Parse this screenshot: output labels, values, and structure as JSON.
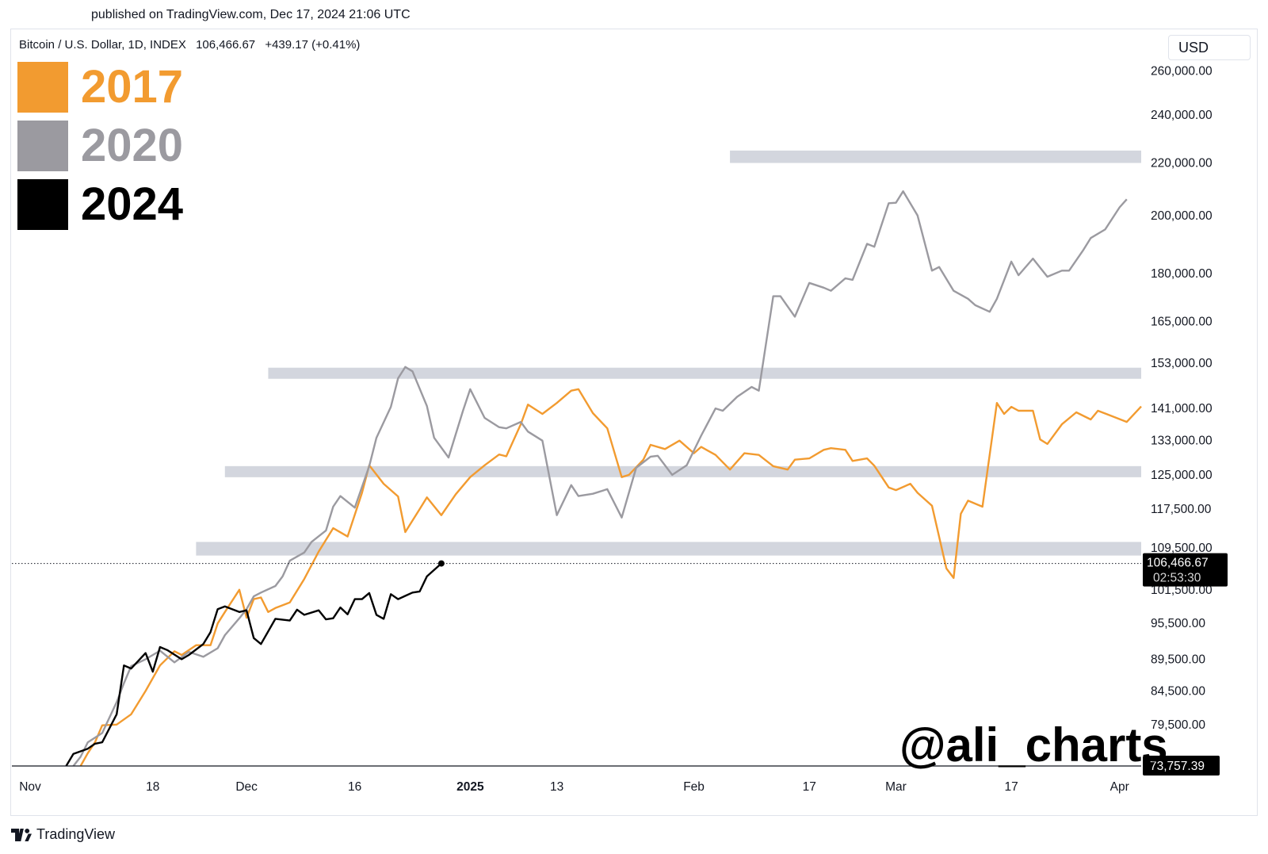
{
  "header": {
    "published": "published on TradingView.com, Dec 17, 2024 21:06 UTC",
    "symbol": "Bitcoin / U.S. Dollar, 1D, INDEX",
    "price": "106,466.67",
    "change": "+439.17 (+0.41%)",
    "currency_button": "USD"
  },
  "legend": [
    {
      "label": "2017",
      "color": "#f29b30"
    },
    {
      "label": "2020",
      "color": "#9b9aa0"
    },
    {
      "label": "2024",
      "color": "#000000"
    }
  ],
  "watermark": "@ali_charts",
  "footer": {
    "brand": "TradingView"
  },
  "chart_data": {
    "type": "line",
    "y_axis": {
      "scale": "log",
      "ticks": [
        "260,000.00",
        "240,000.00",
        "220,000.00",
        "200,000.00",
        "180,000.00",
        "165,000.00",
        "153,000.00",
        "141,000.00",
        "133,000.00",
        "125,000.00",
        "117,500.00",
        "109,500.00",
        "101,500.00",
        "95,500.00",
        "89,500.00",
        "84,500.00",
        "79,500.00"
      ],
      "tick_values": [
        260000,
        240000,
        220000,
        200000,
        180000,
        165000,
        153000,
        141000,
        133000,
        125000,
        117500,
        109500,
        101500,
        95500,
        89500,
        84500,
        79500
      ],
      "current_label": "106,466.67",
      "current_value": 106466.67,
      "timer_label": "02:53:30",
      "base_label": "73,757.39",
      "base_value": 73757.39,
      "range": [
        73757.39,
        265000
      ]
    },
    "x_axis": {
      "range": [
        "2024-11-01",
        "2025-04-04"
      ],
      "ticks": [
        {
          "label": "Nov",
          "date": "2024-11-01",
          "bold": false
        },
        {
          "label": "18",
          "date": "2024-11-18",
          "bold": false
        },
        {
          "label": "Dec",
          "date": "2024-12-01",
          "bold": false
        },
        {
          "label": "16",
          "date": "2024-12-16",
          "bold": false
        },
        {
          "label": "2025",
          "date": "2025-01-01",
          "bold": true
        },
        {
          "label": "13",
          "date": "2025-01-13",
          "bold": false
        },
        {
          "label": "Feb",
          "date": "2025-02-01",
          "bold": false
        },
        {
          "label": "17",
          "date": "2025-02-17",
          "bold": false
        },
        {
          "label": "Mar",
          "date": "2025-03-01",
          "bold": false
        },
        {
          "label": "17",
          "date": "2025-03-17",
          "bold": false
        },
        {
          "label": "Apr",
          "date": "2025-04-01",
          "bold": false
        }
      ]
    },
    "zones": [
      {
        "from": "2024-11-24",
        "to": "2025-04-04",
        "low": 108000,
        "high": 110700
      },
      {
        "from": "2024-11-28",
        "to": "2025-04-04",
        "low": 124700,
        "high": 127000
      },
      {
        "from": "2024-12-04",
        "to": "2025-04-04",
        "low": 148800,
        "high": 151800
      },
      {
        "from": "2025-02-06",
        "to": "2025-04-04",
        "low": 220000,
        "high": 225000
      }
    ],
    "series": [
      {
        "name": "2017",
        "color": "#f29b30",
        "points": [
          [
            "2024-11-08",
            73757
          ],
          [
            "2024-11-09",
            75500
          ],
          [
            "2024-11-10",
            77000
          ],
          [
            "2024-11-11",
            79400
          ],
          [
            "2024-11-13",
            79500
          ],
          [
            "2024-11-15",
            81000
          ],
          [
            "2024-11-17",
            84500
          ],
          [
            "2024-11-19",
            88500
          ],
          [
            "2024-11-21",
            90800
          ],
          [
            "2024-11-22",
            90200
          ],
          [
            "2024-11-24",
            91800
          ],
          [
            "2024-11-26",
            91800
          ],
          [
            "2024-11-27",
            95500
          ],
          [
            "2024-11-28",
            97500
          ],
          [
            "2024-11-30",
            101500
          ],
          [
            "2024-12-01",
            96500
          ],
          [
            "2024-12-02",
            99800
          ],
          [
            "2024-12-03",
            100100
          ],
          [
            "2024-12-04",
            97500
          ],
          [
            "2024-12-05",
            98200
          ],
          [
            "2024-12-07",
            99200
          ],
          [
            "2024-12-09",
            103500
          ],
          [
            "2024-12-11",
            108800
          ],
          [
            "2024-12-13",
            113500
          ],
          [
            "2024-12-15",
            111800
          ],
          [
            "2024-12-17",
            121000
          ],
          [
            "2024-12-18",
            127200
          ],
          [
            "2024-12-20",
            123000
          ],
          [
            "2024-12-22",
            120200
          ],
          [
            "2024-12-23",
            112700
          ],
          [
            "2024-12-25",
            117500
          ],
          [
            "2024-12-26",
            120000
          ],
          [
            "2024-12-28",
            116200
          ],
          [
            "2024-12-30",
            120700
          ],
          [
            "2025-01-01",
            124500
          ],
          [
            "2025-01-03",
            127200
          ],
          [
            "2025-01-05",
            129700
          ],
          [
            "2025-01-06",
            129300
          ],
          [
            "2025-01-08",
            137000
          ],
          [
            "2025-01-09",
            142000
          ],
          [
            "2025-01-11",
            139600
          ],
          [
            "2025-01-13",
            142400
          ],
          [
            "2025-01-15",
            145600
          ],
          [
            "2025-01-16",
            146000
          ],
          [
            "2025-01-18",
            139800
          ],
          [
            "2025-01-20",
            136000
          ],
          [
            "2025-01-22",
            124500
          ],
          [
            "2025-01-23",
            125000
          ],
          [
            "2025-01-25",
            128500
          ],
          [
            "2025-01-26",
            132000
          ],
          [
            "2025-01-28",
            131000
          ],
          [
            "2025-01-30",
            133000
          ],
          [
            "2025-02-01",
            130000
          ],
          [
            "2025-02-02",
            131500
          ],
          [
            "2025-02-04",
            129600
          ],
          [
            "2025-02-06",
            126200
          ],
          [
            "2025-02-08",
            130000
          ],
          [
            "2025-02-10",
            129600
          ],
          [
            "2025-02-12",
            127000
          ],
          [
            "2025-02-14",
            126200
          ],
          [
            "2025-02-15",
            128500
          ],
          [
            "2025-02-17",
            128800
          ],
          [
            "2025-02-19",
            130800
          ],
          [
            "2025-02-20",
            131200
          ],
          [
            "2025-02-22",
            130800
          ],
          [
            "2025-02-23",
            128200
          ],
          [
            "2025-02-25",
            128800
          ],
          [
            "2025-02-26",
            127100
          ],
          [
            "2025-02-28",
            122200
          ],
          [
            "2025-03-01",
            121600
          ],
          [
            "2025-03-03",
            123000
          ],
          [
            "2025-03-04",
            121000
          ],
          [
            "2025-03-06",
            118200
          ],
          [
            "2025-03-08",
            105500
          ],
          [
            "2025-03-09",
            103700
          ],
          [
            "2025-03-10",
            116500
          ],
          [
            "2025-03-11",
            119300
          ],
          [
            "2025-03-13",
            118000
          ],
          [
            "2025-03-15",
            142400
          ],
          [
            "2025-03-16",
            139600
          ],
          [
            "2025-03-17",
            141400
          ],
          [
            "2025-03-18",
            140400
          ],
          [
            "2025-03-20",
            140400
          ],
          [
            "2025-03-21",
            133300
          ],
          [
            "2025-03-22",
            132200
          ],
          [
            "2025-03-24",
            137000
          ],
          [
            "2025-03-26",
            140000
          ],
          [
            "2025-03-28",
            138200
          ],
          [
            "2025-03-29",
            140400
          ],
          [
            "2025-03-31",
            139000
          ],
          [
            "2025-04-02",
            137600
          ],
          [
            "2025-04-04",
            141500
          ]
        ]
      },
      {
        "name": "2020",
        "color": "#9b9aa0",
        "points": [
          [
            "2024-11-07",
            73757
          ],
          [
            "2024-11-08",
            75000
          ],
          [
            "2024-11-09",
            77000
          ],
          [
            "2024-11-11",
            78300
          ],
          [
            "2024-11-13",
            82800
          ],
          [
            "2024-11-14",
            85700
          ],
          [
            "2024-11-15",
            88400
          ],
          [
            "2024-11-17",
            89500
          ],
          [
            "2024-11-19",
            90900
          ],
          [
            "2024-11-21",
            89000
          ],
          [
            "2024-11-23",
            90700
          ],
          [
            "2024-11-25",
            89900
          ],
          [
            "2024-11-27",
            91300
          ],
          [
            "2024-11-28",
            93500
          ],
          [
            "2024-11-30",
            96400
          ],
          [
            "2024-12-01",
            98000
          ],
          [
            "2024-12-02",
            100300
          ],
          [
            "2024-12-03",
            101000
          ],
          [
            "2024-12-05",
            102200
          ],
          [
            "2024-12-06",
            104000
          ],
          [
            "2024-12-07",
            107000
          ],
          [
            "2024-12-09",
            108600
          ],
          [
            "2024-12-10",
            110700
          ],
          [
            "2024-12-12",
            113000
          ],
          [
            "2024-12-13",
            118000
          ],
          [
            "2024-12-14",
            120300
          ],
          [
            "2024-12-16",
            117800
          ],
          [
            "2024-12-18",
            127000
          ],
          [
            "2024-12-19",
            133700
          ],
          [
            "2024-12-21",
            141400
          ],
          [
            "2024-12-22",
            148900
          ],
          [
            "2024-12-23",
            152000
          ],
          [
            "2024-12-24",
            150800
          ],
          [
            "2024-12-26",
            141600
          ],
          [
            "2024-12-27",
            133700
          ],
          [
            "2024-12-29",
            129000
          ],
          [
            "2024-12-31",
            140400
          ],
          [
            "2025-01-01",
            146000
          ],
          [
            "2025-01-03",
            138600
          ],
          [
            "2025-01-05",
            136300
          ],
          [
            "2025-01-06",
            136000
          ],
          [
            "2025-01-08",
            137600
          ],
          [
            "2025-01-09",
            135200
          ],
          [
            "2025-01-11",
            133000
          ],
          [
            "2025-01-13",
            116200
          ],
          [
            "2025-01-15",
            122700
          ],
          [
            "2025-01-16",
            120300
          ],
          [
            "2025-01-18",
            120800
          ],
          [
            "2025-01-20",
            121800
          ],
          [
            "2025-01-22",
            115700
          ],
          [
            "2025-01-24",
            126600
          ],
          [
            "2025-01-26",
            129200
          ],
          [
            "2025-01-27",
            129400
          ],
          [
            "2025-01-29",
            125000
          ],
          [
            "2025-01-31",
            127200
          ],
          [
            "2025-02-02",
            134200
          ],
          [
            "2025-02-04",
            141000
          ],
          [
            "2025-02-05",
            140400
          ],
          [
            "2025-02-07",
            144000
          ],
          [
            "2025-02-09",
            146600
          ],
          [
            "2025-02-10",
            145600
          ],
          [
            "2025-02-12",
            172800
          ],
          [
            "2025-02-13",
            172800
          ],
          [
            "2025-02-15",
            166500
          ],
          [
            "2025-02-17",
            177000
          ],
          [
            "2025-02-19",
            175500
          ],
          [
            "2025-02-20",
            174500
          ],
          [
            "2025-02-22",
            178500
          ],
          [
            "2025-02-23",
            178000
          ],
          [
            "2025-02-25",
            190000
          ],
          [
            "2025-02-26",
            189000
          ],
          [
            "2025-02-28",
            204500
          ],
          [
            "2025-03-01",
            204700
          ],
          [
            "2025-03-02",
            209000
          ],
          [
            "2025-03-04",
            200000
          ],
          [
            "2025-03-06",
            181000
          ],
          [
            "2025-03-07",
            182200
          ],
          [
            "2025-03-09",
            174500
          ],
          [
            "2025-03-11",
            172000
          ],
          [
            "2025-03-12",
            170000
          ],
          [
            "2025-03-14",
            168000
          ],
          [
            "2025-03-15",
            172000
          ],
          [
            "2025-03-17",
            184000
          ],
          [
            "2025-03-18",
            179500
          ],
          [
            "2025-03-20",
            185000
          ],
          [
            "2025-03-22",
            179000
          ],
          [
            "2025-03-24",
            181000
          ],
          [
            "2025-03-25",
            181000
          ],
          [
            "2025-03-27",
            188000
          ],
          [
            "2025-03-28",
            192000
          ],
          [
            "2025-03-30",
            195000
          ],
          [
            "2025-04-01",
            203000
          ],
          [
            "2025-04-02",
            206000
          ]
        ]
      },
      {
        "name": "2024",
        "color": "#000000",
        "points": [
          [
            "2024-11-06",
            73757
          ],
          [
            "2024-11-07",
            75400
          ],
          [
            "2024-11-09",
            76100
          ],
          [
            "2024-11-10",
            76800
          ],
          [
            "2024-11-11",
            77000
          ],
          [
            "2024-11-13",
            81000
          ],
          [
            "2024-11-14",
            88500
          ],
          [
            "2024-11-15",
            88000
          ],
          [
            "2024-11-17",
            90500
          ],
          [
            "2024-11-18",
            87500
          ],
          [
            "2024-11-19",
            91500
          ],
          [
            "2024-11-20",
            91000
          ],
          [
            "2024-11-22",
            89500
          ],
          [
            "2024-11-23",
            90200
          ],
          [
            "2024-11-25",
            92000
          ],
          [
            "2024-11-26",
            94000
          ],
          [
            "2024-11-27",
            98000
          ],
          [
            "2024-11-28",
            98500
          ],
          [
            "2024-11-30",
            97500
          ],
          [
            "2024-12-01",
            97800
          ],
          [
            "2024-12-02",
            93000
          ],
          [
            "2024-12-03",
            92000
          ],
          [
            "2024-12-05",
            96300
          ],
          [
            "2024-12-07",
            96000
          ],
          [
            "2024-12-08",
            97900
          ],
          [
            "2024-12-09",
            97000
          ],
          [
            "2024-12-11",
            97800
          ],
          [
            "2024-12-12",
            96200
          ],
          [
            "2024-12-13",
            96400
          ],
          [
            "2024-12-14",
            98300
          ],
          [
            "2024-12-15",
            97100
          ],
          [
            "2024-12-16",
            99800
          ],
          [
            "2024-12-17",
            99800
          ],
          [
            "2024-12-18",
            100900
          ],
          [
            "2024-12-19",
            97000
          ],
          [
            "2024-12-20",
            96300
          ],
          [
            "2024-12-21",
            100700
          ],
          [
            "2024-12-22",
            99800
          ],
          [
            "2024-12-24",
            101000
          ],
          [
            "2024-12-25",
            101200
          ],
          [
            "2024-12-26",
            104000
          ],
          [
            "2024-12-28",
            106466.67
          ]
        ]
      }
    ]
  }
}
